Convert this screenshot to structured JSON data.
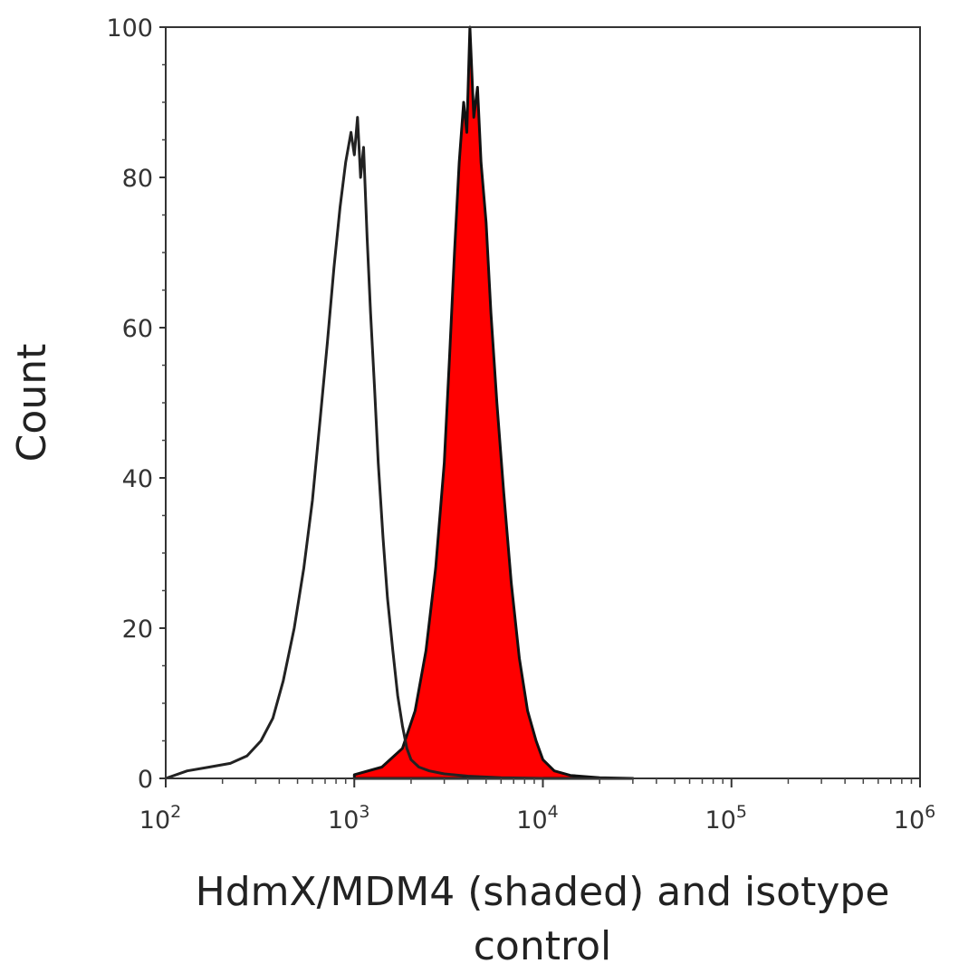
{
  "chart_data": {
    "type": "area",
    "title": "",
    "xlabel": "HdmX/MDM4 (shaded) and isotype control",
    "xlabel_lines": [
      "HdmX/MDM4 (shaded) and isotype",
      "control"
    ],
    "ylabel": "Count",
    "xscale": "log",
    "xlim": [
      100,
      1000000
    ],
    "ylim": [
      0,
      100
    ],
    "x_ticks": [
      {
        "base": "10",
        "exp": "2"
      },
      {
        "base": "10",
        "exp": "3"
      },
      {
        "base": "10",
        "exp": "4"
      },
      {
        "base": "10",
        "exp": "5"
      },
      {
        "base": "10",
        "exp": "6"
      }
    ],
    "y_ticks": [
      "0",
      "20",
      "40",
      "60",
      "80",
      "100"
    ],
    "grid": false,
    "legend": "none",
    "series": [
      {
        "role": "isotype control",
        "style": "outline",
        "color": "#222222",
        "x": [
          100,
          130,
          170,
          220,
          270,
          320,
          370,
          420,
          480,
          540,
          600,
          660,
          720,
          780,
          840,
          900,
          960,
          1000,
          1040,
          1080,
          1120,
          1170,
          1220,
          1280,
          1340,
          1420,
          1500,
          1600,
          1700,
          1800,
          1900,
          2000,
          2200,
          2500,
          3000,
          4000,
          6000,
          10000
        ],
        "y": [
          0,
          1,
          1.5,
          2,
          3,
          5,
          8,
          13,
          20,
          28,
          37,
          48,
          58,
          68,
          76,
          82,
          86,
          83,
          88,
          80,
          84,
          72,
          62,
          52,
          42,
          32,
          24,
          17,
          11,
          7,
          4,
          2.5,
          1.5,
          1,
          0.6,
          0.3,
          0.1,
          0
        ]
      },
      {
        "role": "HdmX/MDM4",
        "style": "filled",
        "color": "#ff0000",
        "x": [
          1000,
          1400,
          1800,
          2100,
          2400,
          2700,
          3000,
          3200,
          3400,
          3600,
          3800,
          3950,
          4100,
          4300,
          4500,
          4700,
          5000,
          5300,
          5700,
          6200,
          6800,
          7500,
          8300,
          9200,
          10000,
          11500,
          14000,
          20000,
          30000
        ],
        "y": [
          0.5,
          1.5,
          4,
          9,
          17,
          28,
          42,
          56,
          70,
          82,
          90,
          86,
          100,
          88,
          92,
          82,
          74,
          62,
          50,
          38,
          26,
          16,
          9,
          5,
          2.5,
          1,
          0.4,
          0.1,
          0
        ]
      }
    ]
  }
}
